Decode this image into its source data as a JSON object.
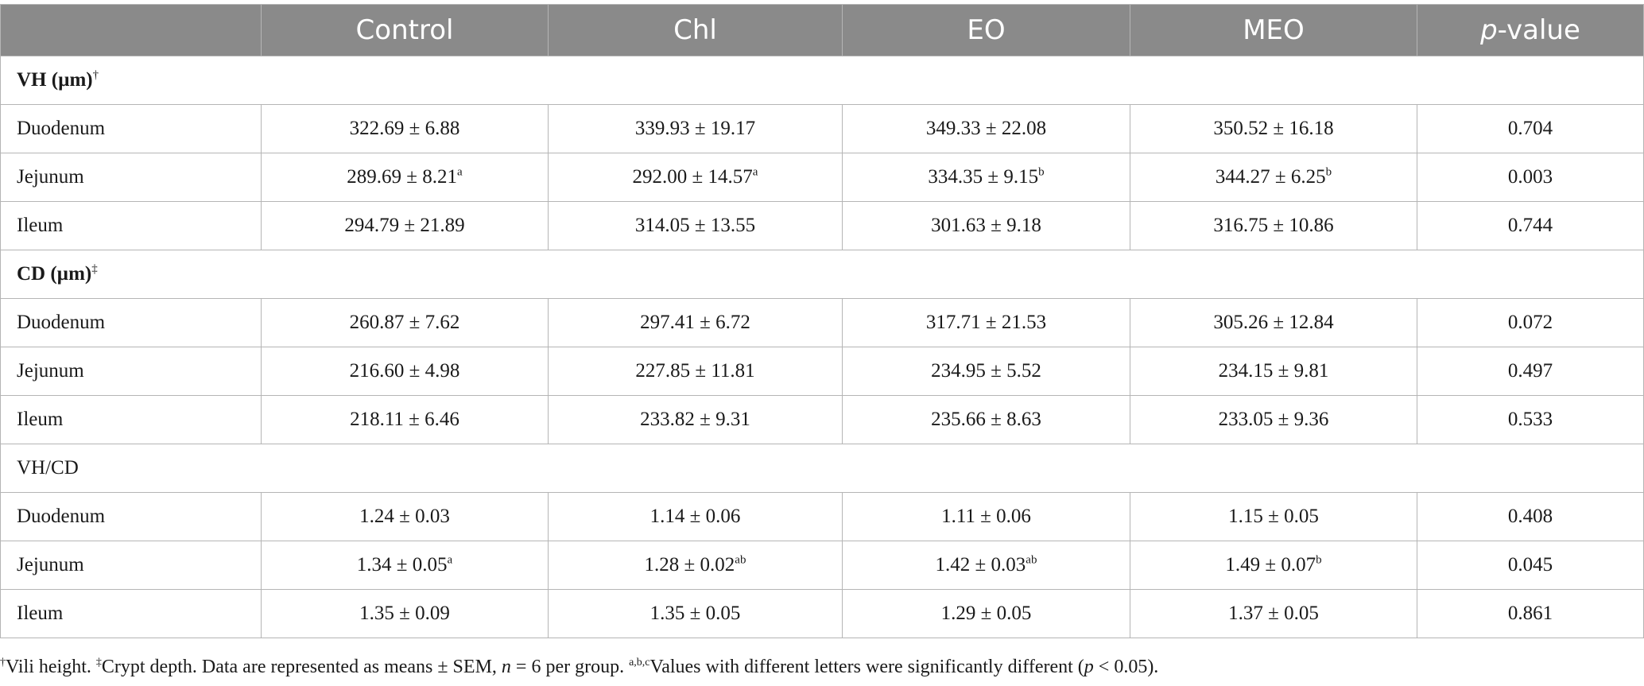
{
  "header": {
    "blank": "",
    "col1": "Control",
    "col2": "Chl",
    "col3": "EO",
    "col4": "MEO",
    "col5_italic": "p",
    "col5_rest": "-value"
  },
  "sections": [
    {
      "title": "VH (µm)",
      "title_sup": "†",
      "bold": true,
      "rows": [
        {
          "label": "Duodenum",
          "cells": [
            {
              "v": "322.69 ± 6.88",
              "s": ""
            },
            {
              "v": "339.93 ± 19.17",
              "s": ""
            },
            {
              "v": "349.33 ± 22.08",
              "s": ""
            },
            {
              "v": "350.52 ± 16.18",
              "s": ""
            }
          ],
          "p": "0.704"
        },
        {
          "label": "Jejunum",
          "cells": [
            {
              "v": "289.69 ± 8.21",
              "s": "a"
            },
            {
              "v": "292.00 ± 14.57",
              "s": "a"
            },
            {
              "v": "334.35 ± 9.15",
              "s": "b"
            },
            {
              "v": "344.27 ± 6.25",
              "s": "b"
            }
          ],
          "p": "0.003"
        },
        {
          "label": "Ileum",
          "cells": [
            {
              "v": "294.79 ± 21.89",
              "s": ""
            },
            {
              "v": "314.05 ± 13.55",
              "s": ""
            },
            {
              "v": "301.63 ± 9.18",
              "s": ""
            },
            {
              "v": "316.75 ± 10.86",
              "s": ""
            }
          ],
          "p": "0.744"
        }
      ]
    },
    {
      "title": "CD (µm)",
      "title_sup": "‡",
      "bold": true,
      "rows": [
        {
          "label": "Duodenum",
          "cells": [
            {
              "v": "260.87 ± 7.62",
              "s": ""
            },
            {
              "v": "297.41 ± 6.72",
              "s": ""
            },
            {
              "v": "317.71 ± 21.53",
              "s": ""
            },
            {
              "v": "305.26 ± 12.84",
              "s": ""
            }
          ],
          "p": "0.072"
        },
        {
          "label": "Jejunum",
          "cells": [
            {
              "v": "216.60 ± 4.98",
              "s": ""
            },
            {
              "v": "227.85 ± 11.81",
              "s": ""
            },
            {
              "v": "234.95 ± 5.52",
              "s": ""
            },
            {
              "v": "234.15 ± 9.81",
              "s": ""
            }
          ],
          "p": "0.497"
        },
        {
          "label": "Ileum",
          "cells": [
            {
              "v": "218.11 ± 6.46",
              "s": ""
            },
            {
              "v": "233.82 ± 9.31",
              "s": ""
            },
            {
              "v": "235.66 ± 8.63",
              "s": ""
            },
            {
              "v": "233.05 ± 9.36",
              "s": ""
            }
          ],
          "p": "0.533"
        }
      ]
    },
    {
      "title": "VH/CD",
      "title_sup": "",
      "bold": false,
      "rows": [
        {
          "label": "Duodenum",
          "cells": [
            {
              "v": "1.24 ± 0.03",
              "s": ""
            },
            {
              "v": "1.14 ± 0.06",
              "s": ""
            },
            {
              "v": "1.11 ± 0.06",
              "s": ""
            },
            {
              "v": "1.15 ± 0.05",
              "s": ""
            }
          ],
          "p": "0.408"
        },
        {
          "label": "Jejunum",
          "cells": [
            {
              "v": "1.34 ± 0.05",
              "s": "a"
            },
            {
              "v": "1.28 ± 0.02",
              "s": "ab"
            },
            {
              "v": "1.42 ± 0.03",
              "s": "ab"
            },
            {
              "v": "1.49 ± 0.07",
              "s": "b"
            }
          ],
          "p": "0.045"
        },
        {
          "label": "Ileum",
          "cells": [
            {
              "v": "1.35 ± 0.09",
              "s": ""
            },
            {
              "v": "1.35 ± 0.05",
              "s": ""
            },
            {
              "v": "1.29 ± 0.05",
              "s": ""
            },
            {
              "v": "1.37 ± 0.05",
              "s": ""
            }
          ],
          "p": "0.861"
        }
      ]
    }
  ],
  "footnote": {
    "dagger": "†",
    "t1": "Vili height. ",
    "ddagger": "‡",
    "t2": "Crypt depth. Data are represented as means ± SEM, ",
    "n_italic": "n",
    "t3": " = 6 per group. ",
    "abc": "a,b,c",
    "t4": "Values with different letters were significantly different (",
    "p_italic": "p",
    "t5": " < 0.05)."
  },
  "colors": {
    "header_bg": "#8a8a8a",
    "header_text": "#ffffff",
    "border": "#b5b5b5"
  }
}
